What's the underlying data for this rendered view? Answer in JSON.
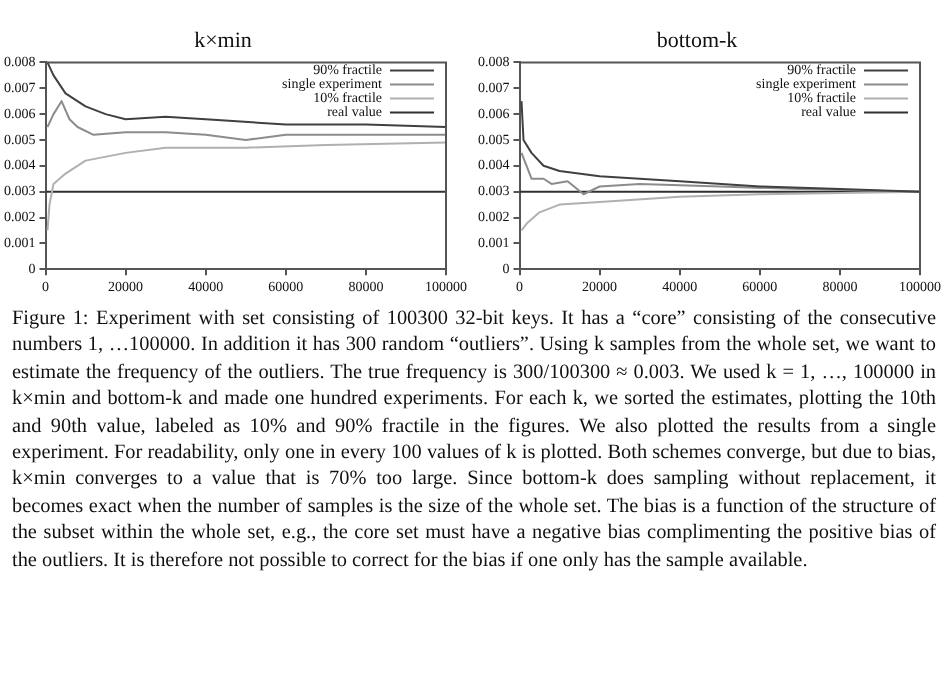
{
  "chart_data": [
    {
      "type": "line",
      "title": "k×min",
      "xlim": [
        0,
        100000
      ],
      "ylim": [
        0,
        0.008
      ],
      "xticks": [
        0,
        20000,
        40000,
        60000,
        80000,
        100000
      ],
      "yticks": [
        0,
        0.001,
        0.002,
        0.003,
        0.004,
        0.005,
        0.006,
        0.007,
        0.008
      ],
      "legend": "top right",
      "marker": "none",
      "line_style": "solid",
      "series": [
        {
          "name": "90% fractile",
          "color": "#404040",
          "x": [
            500,
            2000,
            5000,
            10000,
            15000,
            20000,
            30000,
            40000,
            60000,
            80000,
            100000
          ],
          "values": [
            0.008,
            0.0075,
            0.0068,
            0.0063,
            0.006,
            0.0058,
            0.0059,
            0.0058,
            0.0056,
            0.0056,
            0.0055
          ]
        },
        {
          "name": "single experiment",
          "color": "#8c8c8c",
          "x": [
            500,
            2000,
            4000,
            6000,
            8000,
            12000,
            20000,
            30000,
            40000,
            50000,
            60000,
            80000,
            100000
          ],
          "values": [
            0.0055,
            0.006,
            0.0065,
            0.0058,
            0.0055,
            0.0052,
            0.0053,
            0.0053,
            0.0052,
            0.005,
            0.0052,
            0.0052,
            0.0052
          ]
        },
        {
          "name": "10% fractile",
          "color": "#b0b0b0",
          "x": [
            500,
            1000,
            2000,
            5000,
            10000,
            20000,
            30000,
            50000,
            70000,
            100000
          ],
          "values": [
            0.0015,
            0.0025,
            0.0033,
            0.0037,
            0.0042,
            0.0045,
            0.0047,
            0.0047,
            0.0048,
            0.0049
          ]
        },
        {
          "name": "real value",
          "color": "#303030",
          "x": [
            0,
            100000
          ],
          "values": [
            0.003,
            0.003
          ]
        }
      ],
      "annotations": [
        "Figure 1: Experiment with set consisting of 100300 32-bit keys. It has a “core” consisting of the consecutive numbers 1, …100000. In addition it has 300 random “outliers”. Using k samples from the whole set, we want to estimate the frequency of the outliers. The true frequency is 300/100300 ≈ 0.003. We used k = 1, …, 100000 in k×min and bottom-k and made one hundred experiments. For each k, we sorted the estimates, plotting the 10th and 90th value, labeled as 10% and 90% fractile in the figures. We also plotted the results from a single experiment. For readability, only one in every 100 values of k is plotted. Both schemes converge, but due to bias, k×min converges to a value that is 70% too large. Since bottom-k does sampling without replacement, it becomes exact when the number of samples is the size of the whole set. The bias is a function of the structure of the subset within the whole set, e.g., the core set must have a negative bias complimenting the positive bias of the outliers. It is therefore not possible to correct for the bias if one only has the sample available."
      ]
    },
    {
      "type": "line",
      "title": "bottom-k",
      "xlim": [
        0,
        100000
      ],
      "ylim": [
        0,
        0.008
      ],
      "xticks": [
        0,
        20000,
        40000,
        60000,
        80000,
        100000
      ],
      "yticks": [
        0,
        0.001,
        0.002,
        0.003,
        0.004,
        0.005,
        0.006,
        0.007,
        0.008
      ],
      "legend": "top right",
      "marker": "none",
      "line_style": "solid",
      "series": [
        {
          "name": "90% fractile",
          "color": "#404040",
          "x": [
            500,
            1000,
            3000,
            6000,
            10000,
            20000,
            40000,
            60000,
            80000,
            100000
          ],
          "values": [
            0.0065,
            0.005,
            0.0045,
            0.004,
            0.0038,
            0.0036,
            0.0034,
            0.0032,
            0.0031,
            0.003
          ]
        },
        {
          "name": "single experiment",
          "color": "#8c8c8c",
          "x": [
            500,
            3000,
            6000,
            8000,
            12000,
            16000,
            20000,
            30000,
            50000,
            70000,
            100000
          ],
          "values": [
            0.0045,
            0.0035,
            0.0035,
            0.0033,
            0.0034,
            0.0029,
            0.0032,
            0.0033,
            0.0032,
            0.0031,
            0.003
          ]
        },
        {
          "name": "10% fractile",
          "color": "#b0b0b0",
          "x": [
            500,
            2000,
            5000,
            10000,
            20000,
            40000,
            60000,
            100000
          ],
          "values": [
            0.0015,
            0.0018,
            0.0022,
            0.0025,
            0.0026,
            0.0028,
            0.0029,
            0.003
          ]
        },
        {
          "name": "real value",
          "color": "#303030",
          "x": [
            0,
            100000
          ],
          "values": [
            0.003,
            0.003
          ]
        }
      ]
    }
  ]
}
